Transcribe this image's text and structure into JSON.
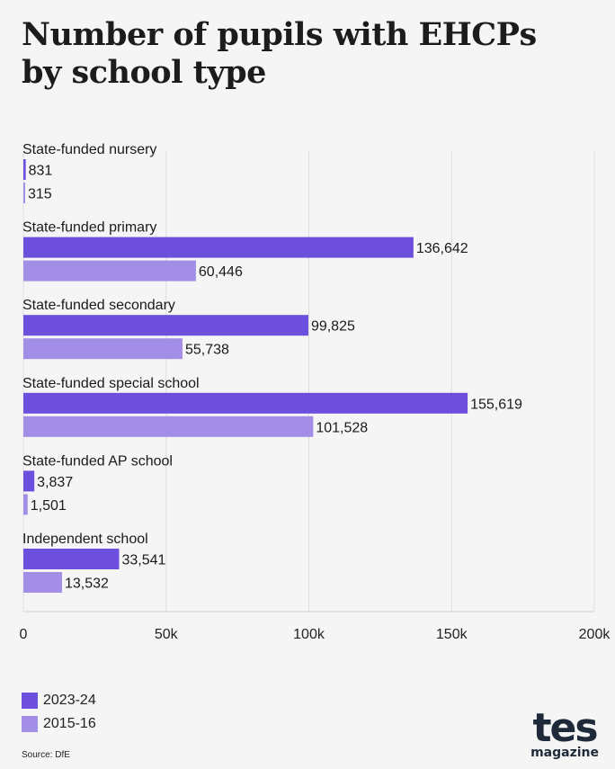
{
  "title_lines": [
    "Number of pupils with EHCPs",
    "by school type"
  ],
  "source": "Source: DfE",
  "logo": {
    "main": "tes",
    "sub": "magazine"
  },
  "colors": {
    "series_2023": "#6c4fdc",
    "series_2015": "#a28ee6",
    "grid": "#dedede",
    "background": "#f5f5f5"
  },
  "chart_data": {
    "type": "bar",
    "orientation": "horizontal",
    "categories": [
      "State-funded nursery",
      "State-funded primary",
      "State-funded secondary",
      "State-funded special school",
      "State-funded AP school",
      "Independent school"
    ],
    "series": [
      {
        "name": "2023-24",
        "color": "#6c4fdc",
        "values": [
          831,
          136642,
          99825,
          155619,
          3837,
          33541
        ],
        "labels": [
          "831",
          "136,642",
          "99,825",
          "155,619",
          "3,837",
          "33,541"
        ]
      },
      {
        "name": "2015-16",
        "color": "#a28ee6",
        "values": [
          315,
          60446,
          55738,
          101528,
          1501,
          13532
        ],
        "labels": [
          "315",
          "60,446",
          "55,738",
          "101,528",
          "1,501",
          "13,532"
        ]
      }
    ],
    "xlim": [
      0,
      200000
    ],
    "xticks": [
      0,
      50000,
      100000,
      150000,
      200000
    ],
    "xtick_labels": [
      "0",
      "50k",
      "100k",
      "150k",
      "200k"
    ],
    "grid": true,
    "legend_position": "bottom-left"
  }
}
